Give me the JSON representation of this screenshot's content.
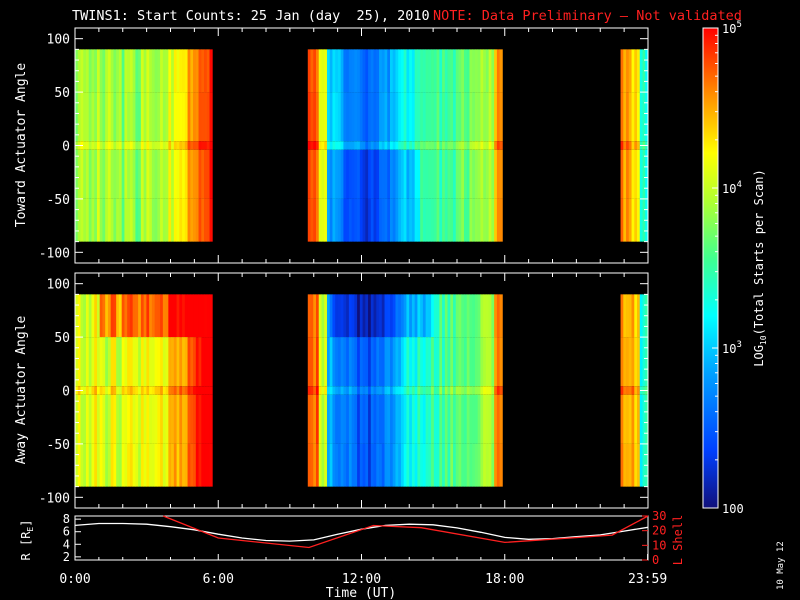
{
  "title": {
    "main": "TWINS1: Start Counts: 25 Jan (day  25), 2010",
    "note": "NOTE: Data Preliminary – Not validated"
  },
  "side_date": "10 May 12",
  "colors": {
    "background": "#000000",
    "axes": "#ffffff",
    "note": "#ff2020",
    "lshell": "#ff2020",
    "r_line": "#ffffff"
  },
  "chart_data": [
    {
      "id": "toward",
      "type": "heatmap",
      "ylabel": "Toward Actuator Angle",
      "ylim": [
        -110,
        110
      ],
      "yticks": [
        100,
        50,
        0,
        -50,
        -100
      ],
      "xlim": [
        0,
        24
      ],
      "data_y_range": [
        -90,
        90
      ],
      "data_intervals": [
        [
          0,
          5.75
        ],
        [
          9.75,
          17.9
        ],
        [
          22.85,
          24
        ]
      ],
      "gaps": [
        [
          5.75,
          9.75
        ],
        [
          17.9,
          22.85
        ]
      ],
      "dominant_level": [
        {
          "t": [
            0,
            3.5
          ],
          "level": "green-yellow"
        },
        {
          "t": [
            3.5,
            5.75
          ],
          "level": "yellow-orange-red"
        },
        {
          "t": [
            9.75,
            10.5
          ],
          "level": "orange-red"
        },
        {
          "t": [
            10.5,
            13.5
          ],
          "level": "cyan-blue"
        },
        {
          "t": [
            13.5,
            17.9
          ],
          "level": "cyan-green"
        },
        {
          "t": [
            22.85,
            24
          ],
          "level": "yellow-orange"
        }
      ]
    },
    {
      "id": "away",
      "type": "heatmap",
      "ylabel": "Away Actuator Angle",
      "ylim": [
        -110,
        110
      ],
      "yticks": [
        100,
        50,
        0,
        -50,
        -100
      ],
      "xlim": [
        0,
        24
      ],
      "data_y_range": [
        -90,
        90
      ],
      "data_intervals": [
        [
          0,
          5.75
        ],
        [
          9.75,
          17.9
        ],
        [
          22.85,
          24
        ]
      ],
      "gaps": [
        [
          5.75,
          9.75
        ],
        [
          17.9,
          22.85
        ]
      ],
      "dominant_level": [
        {
          "t": [
            0,
            4.5
          ],
          "level": "yellow-orange"
        },
        {
          "t": [
            4.5,
            5.75
          ],
          "level": "orange-red"
        },
        {
          "t": [
            9.75,
            10.5
          ],
          "level": "orange-red"
        },
        {
          "t": [
            10.5,
            13.5
          ],
          "level": "blue"
        },
        {
          "t": [
            13.5,
            17.9
          ],
          "level": "cyan-green"
        },
        {
          "t": [
            22.85,
            24
          ],
          "level": "yellow-orange"
        }
      ]
    },
    {
      "id": "orbit",
      "type": "line",
      "xlabel": "Time (UT)",
      "xticks": [
        "0:00",
        "6:00",
        "12:00",
        "18:00",
        "23:59"
      ],
      "xtick_values": [
        0,
        6,
        12,
        18,
        23.983
      ],
      "xlim": [
        0,
        24
      ],
      "ylabel_left": "R [R",
      "ylabel_left_sub": "E",
      "ylabel_left_end": "]",
      "ylim_left": [
        1.5,
        8.5
      ],
      "yticks_left": [
        8,
        6,
        4,
        2
      ],
      "ylabel_right": "L Shell",
      "ylim_right": [
        0,
        30
      ],
      "yticks_right": [
        30,
        20,
        10,
        0
      ],
      "series": [
        {
          "name": "R",
          "axis": "left",
          "x": [
            0,
            1,
            2,
            3,
            4,
            5,
            6,
            7,
            8,
            9,
            10,
            11,
            12,
            13,
            14,
            15,
            16,
            17,
            18,
            19,
            20,
            21,
            22,
            23,
            24
          ],
          "values": [
            7.0,
            7.3,
            7.3,
            7.2,
            6.8,
            6.3,
            5.6,
            5.0,
            4.6,
            4.5,
            4.7,
            5.6,
            6.4,
            7.0,
            7.2,
            7.1,
            6.6,
            5.9,
            5.1,
            4.8,
            4.9,
            5.2,
            5.5,
            6.1,
            6.7
          ]
        },
        {
          "name": "L Shell",
          "axis": "right",
          "x": [
            3.7,
            6,
            9.8,
            12.5,
            14.5,
            18,
            22.5,
            24
          ],
          "values": [
            30,
            15,
            8.5,
            23.5,
            22,
            12,
            17,
            30
          ]
        }
      ]
    }
  ],
  "colorbar": {
    "label_prefix": "LOG",
    "label_sub": "10",
    "label_suffix": "(Total Starts per Scan)",
    "ticks": [
      {
        "base": "10",
        "exp": "5",
        "value": 100000
      },
      {
        "base": "10",
        "exp": "4",
        "value": 10000
      },
      {
        "base": "10",
        "exp": "3",
        "value": 1000
      },
      {
        "base": "100",
        "exp": "",
        "value": 100
      }
    ],
    "range": [
      100,
      100000
    ]
  }
}
